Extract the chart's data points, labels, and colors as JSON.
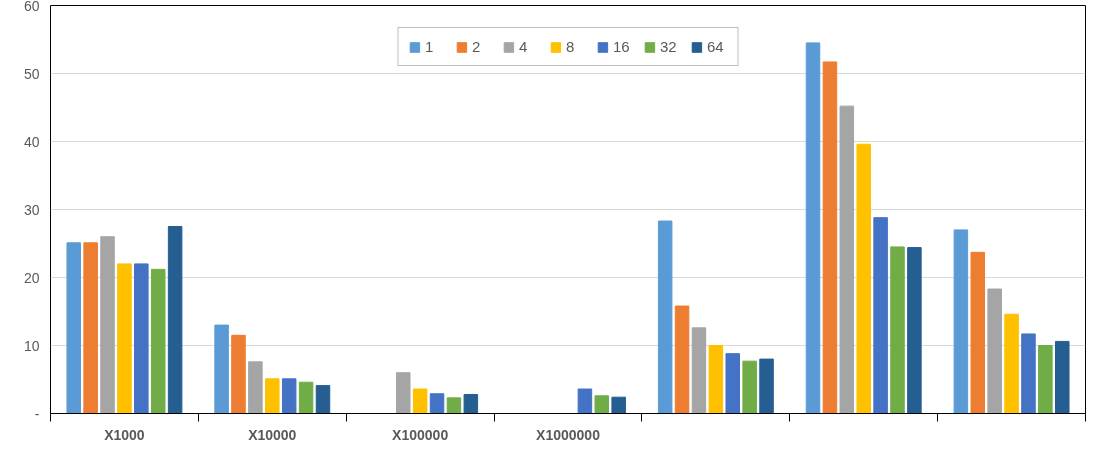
{
  "chart_data": {
    "type": "bar",
    "categories": [
      "X1000",
      "X10000",
      "X100000",
      "X1000000",
      null,
      null,
      null
    ],
    "series": [
      {
        "name": "1",
        "color": "#5b9bd5",
        "values": [
          25.1,
          13.0,
          null,
          null,
          28.3,
          54.5,
          27.0
        ]
      },
      {
        "name": "2",
        "color": "#ed7d31",
        "values": [
          25.1,
          11.5,
          null,
          null,
          15.8,
          51.7,
          23.7
        ]
      },
      {
        "name": "4",
        "color": "#a5a5a5",
        "values": [
          26.0,
          7.6,
          6.0,
          null,
          12.6,
          45.2,
          18.3
        ]
      },
      {
        "name": "8",
        "color": "#ffc000",
        "values": [
          22.0,
          5.1,
          3.6,
          null,
          10.0,
          39.6,
          14.6
        ]
      },
      {
        "name": "16",
        "color": "#4472c4",
        "values": [
          22.0,
          5.1,
          2.9,
          3.6,
          8.8,
          28.8,
          11.7
        ]
      },
      {
        "name": "32",
        "color": "#70ad47",
        "values": [
          21.2,
          4.6,
          2.3,
          2.6,
          7.7,
          24.5,
          10.0
        ]
      },
      {
        "name": "64",
        "color": "#255e91",
        "values": [
          27.5,
          4.1,
          2.8,
          2.4,
          8.0,
          24.4,
          10.6
        ]
      }
    ],
    "ylim": [
      0,
      60
    ],
    "yticks": [
      {
        "value": 0,
        "label": "-"
      },
      10,
      20,
      30,
      40,
      50,
      60
    ],
    "grid": "y",
    "legend": "top"
  }
}
